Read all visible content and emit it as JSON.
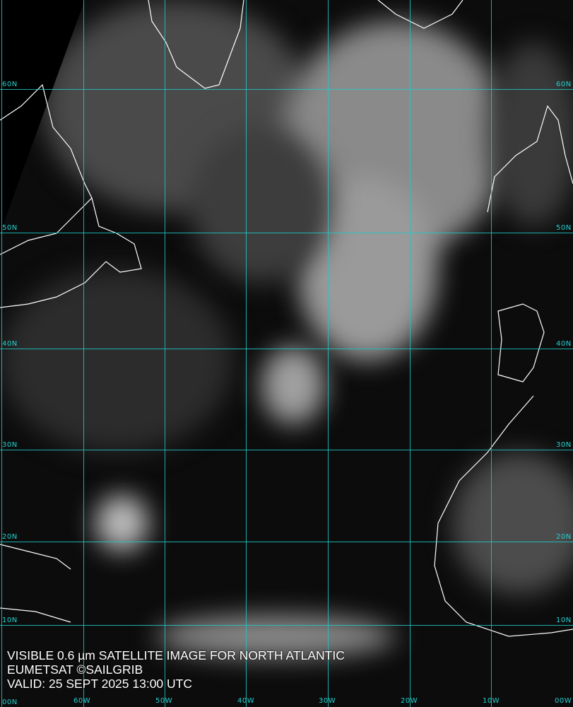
{
  "caption": {
    "line1": "VISIBLE 0.6 µm SATELLITE IMAGE FOR NORTH ATLANTIC",
    "line2": "EUMETSAT ©SAILGRIB",
    "line3": "VALID:  25 SEPT 2025 13:00 UTC"
  },
  "latitudes": [
    "60N",
    "50N",
    "40N",
    "30N",
    "20N",
    "10N",
    "00N"
  ],
  "longitudes": [
    "60W",
    "50W",
    "40W",
    "30W",
    "20W",
    "10W",
    "00W"
  ],
  "colors": {
    "grid": "#1fc8c8",
    "coastline": "#ffffff",
    "text": "#ffffff"
  }
}
